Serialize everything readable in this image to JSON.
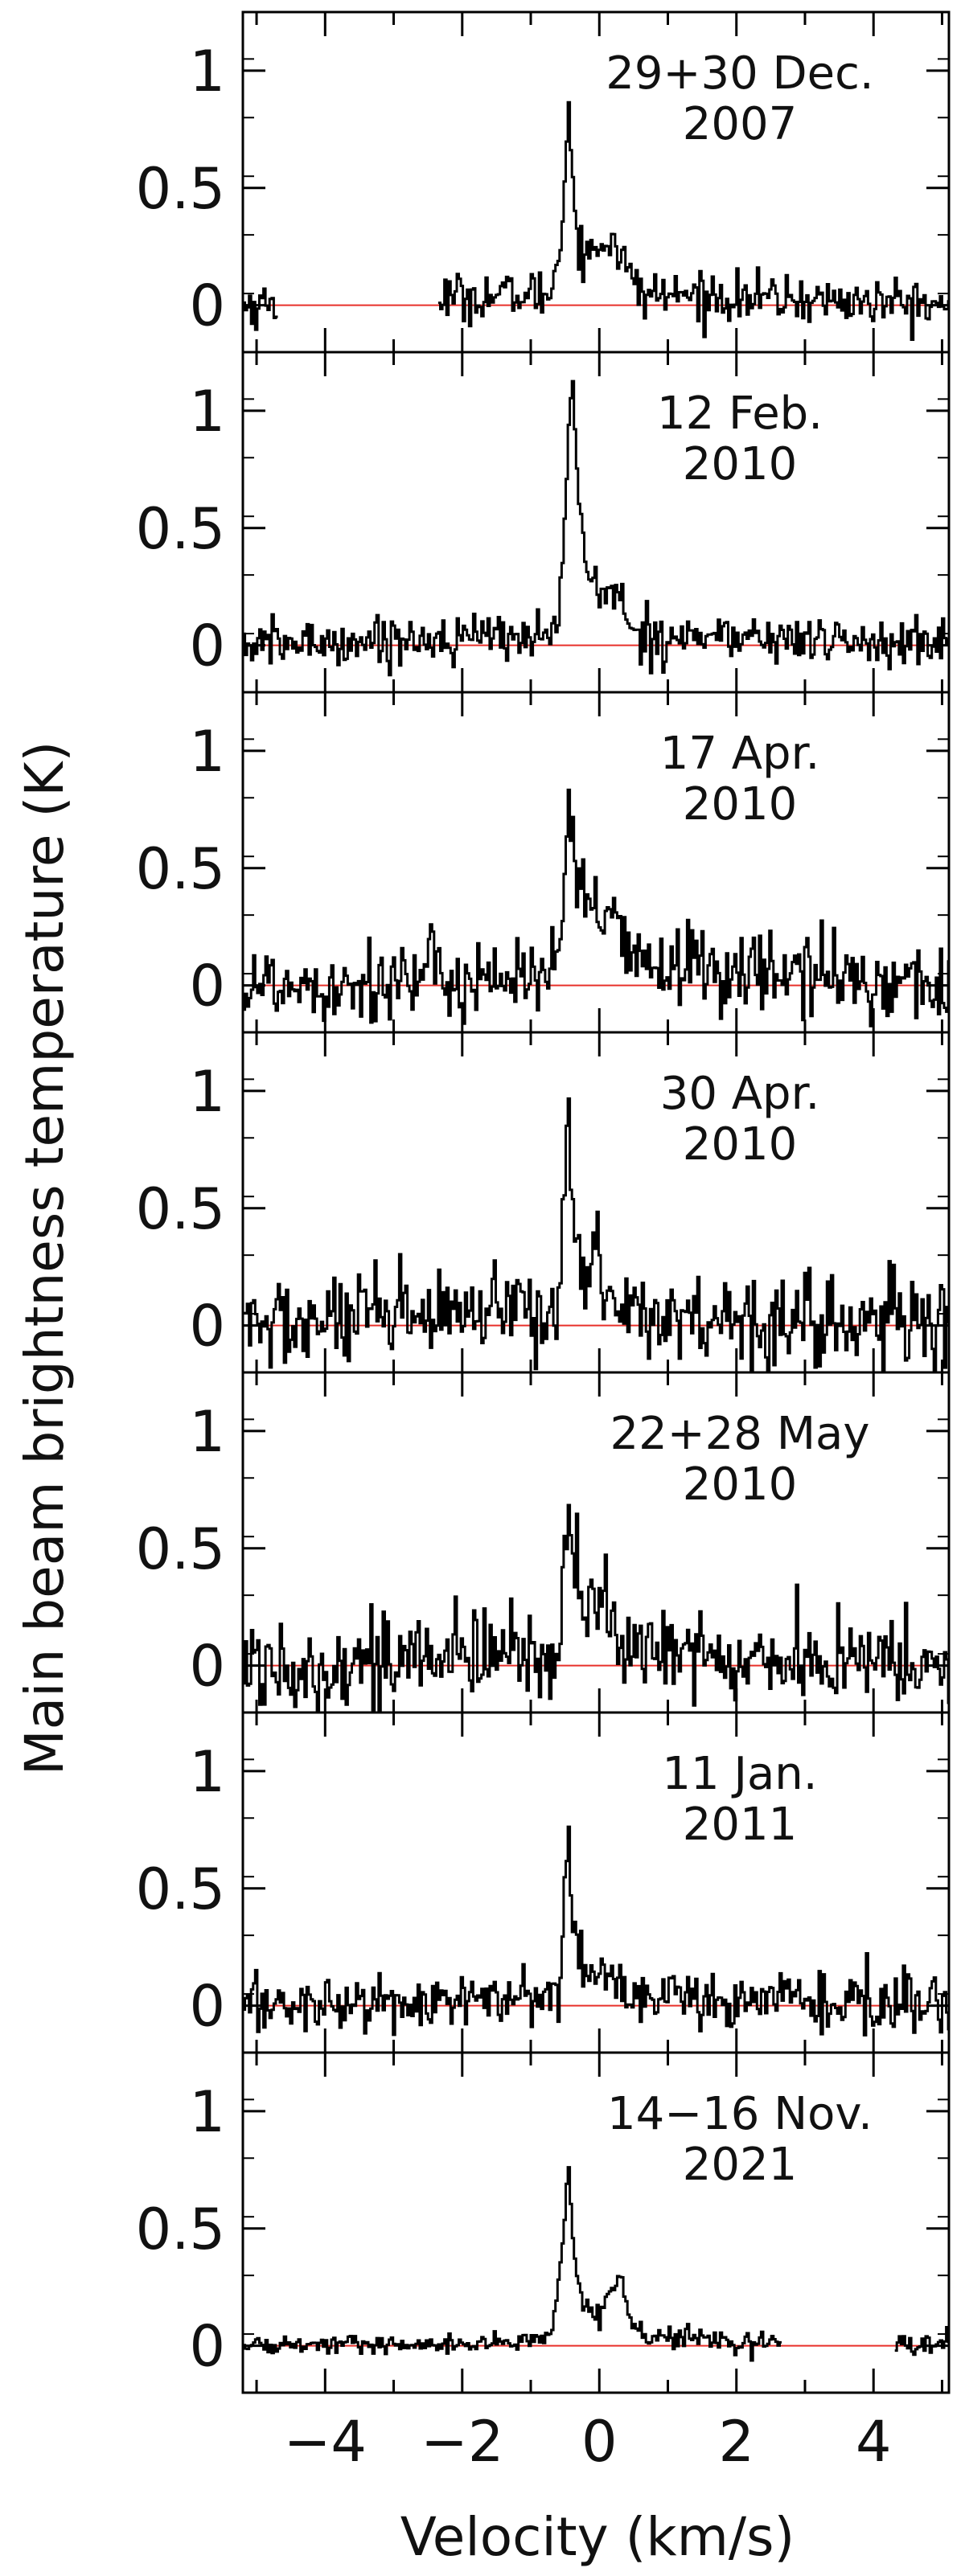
{
  "figure": {
    "ylabel": "Main beam brightness temperature (K)",
    "xlabel": "Velocity (km/s)"
  },
  "colors": {
    "spectrum": "#000000",
    "baseline": "#e8302a",
    "frame": "#000000"
  },
  "chart_data": {
    "type": "line",
    "xlabel": "Velocity (km/s)",
    "ylabel": "Main beam brightness temperature (K)",
    "xlim": [
      -5.2,
      5.1
    ],
    "ylim": [
      -0.2,
      1.25
    ],
    "x_ticks": [
      -4,
      -2,
      0,
      2,
      4
    ],
    "y_ticks": [
      0,
      0.5,
      1
    ],
    "y_tick_labels": [
      "0",
      "0.5",
      "1"
    ],
    "x_tick_labels": [
      "−4",
      "−2",
      "0",
      "2",
      "4"
    ],
    "grid": false,
    "baseline": 0,
    "panels": [
      {
        "label_line1": "29+30 Dec.",
        "label_line2": "2007",
        "peak_velocity": -0.45,
        "peak_temperature": 0.88,
        "secondary_feature": "broad wing 0.2–0.3 K from -0.3 to 0.5 km/s",
        "noise_rms": 0.05,
        "gaps": [
          [
            -4.7,
            -2.35
          ]
        ],
        "profile_points": [
          [
            -5.2,
            0.0
          ],
          [
            -0.7,
            0.05
          ],
          [
            -0.55,
            0.3
          ],
          [
            -0.45,
            0.88
          ],
          [
            -0.35,
            0.35
          ],
          [
            -0.2,
            0.2
          ],
          [
            0.0,
            0.25
          ],
          [
            0.2,
            0.3
          ],
          [
            0.4,
            0.15
          ],
          [
            0.6,
            0.05
          ],
          [
            5.1,
            0.0
          ]
        ]
      },
      {
        "label_line1": "12 Feb.",
        "label_line2": "2010",
        "peak_velocity": -0.4,
        "peak_temperature": 1.22,
        "secondary_feature": "shoulder ~0.25 K from -0.3 to 0.3 km/s",
        "noise_rms": 0.05,
        "gaps": [],
        "profile_points": [
          [
            -5.2,
            0.0
          ],
          [
            -0.6,
            0.05
          ],
          [
            -0.5,
            0.6
          ],
          [
            -0.4,
            1.22
          ],
          [
            -0.3,
            0.6
          ],
          [
            -0.2,
            0.3
          ],
          [
            0.0,
            0.25
          ],
          [
            0.3,
            0.2
          ],
          [
            0.5,
            0.05
          ],
          [
            5.1,
            0.0
          ]
        ]
      },
      {
        "label_line1": "17 Apr.",
        "label_line2": "2010",
        "peak_velocity": -0.45,
        "peak_temperature": 0.8,
        "secondary_feature": "wing ~0.3 K from -0.3 to 0.3 km/s",
        "noise_rms": 0.09,
        "gaps": [],
        "profile_points": [
          [
            -5.2,
            0.0
          ],
          [
            -0.6,
            0.05
          ],
          [
            -0.5,
            0.4
          ],
          [
            -0.45,
            0.8
          ],
          [
            -0.35,
            0.45
          ],
          [
            -0.1,
            0.3
          ],
          [
            0.2,
            0.3
          ],
          [
            0.4,
            0.1
          ],
          [
            5.1,
            0.0
          ]
        ]
      },
      {
        "label_line1": "30 Apr.",
        "label_line2": "2010",
        "peak_velocity": -0.45,
        "peak_temperature": 1.0,
        "secondary_feature": "weak wing ~0.25 K near -0.2 to 0.2 km/s",
        "noise_rms": 0.1,
        "gaps": [],
        "profile_points": [
          [
            -5.2,
            0.0
          ],
          [
            -0.6,
            0.05
          ],
          [
            -0.52,
            0.5
          ],
          [
            -0.45,
            1.0
          ],
          [
            -0.38,
            0.45
          ],
          [
            -0.2,
            0.25
          ],
          [
            0.2,
            0.2
          ],
          [
            0.35,
            0.05
          ],
          [
            5.1,
            0.0
          ]
        ]
      },
      {
        "label_line1": "22+28 May",
        "label_line2": "2010",
        "peak_velocity": -0.45,
        "peak_temperature": 0.82,
        "secondary_feature": "wing ~0.25 K from -0.3 to 0.4 km/s",
        "noise_rms": 0.1,
        "gaps": [],
        "profile_points": [
          [
            -5.2,
            0.0
          ],
          [
            -0.6,
            0.05
          ],
          [
            -0.52,
            0.45
          ],
          [
            -0.45,
            0.82
          ],
          [
            -0.38,
            0.4
          ],
          [
            -0.2,
            0.25
          ],
          [
            0.2,
            0.25
          ],
          [
            0.4,
            0.05
          ],
          [
            5.1,
            0.0
          ]
        ]
      },
      {
        "label_line1": "11 Jan.",
        "label_line2": "2011",
        "peak_velocity": -0.45,
        "peak_temperature": 0.8,
        "secondary_feature": "weak wing ~0.15 K",
        "noise_rms": 0.06,
        "gaps": [],
        "profile_points": [
          [
            -5.2,
            0.0
          ],
          [
            -0.6,
            0.03
          ],
          [
            -0.52,
            0.4
          ],
          [
            -0.45,
            0.8
          ],
          [
            -0.38,
            0.3
          ],
          [
            -0.2,
            0.15
          ],
          [
            0.2,
            0.12
          ],
          [
            0.4,
            0.03
          ],
          [
            5.1,
            0.0
          ]
        ]
      },
      {
        "label_line1": "14−16 Nov.",
        "label_line2": "2021",
        "peak_velocity": -0.45,
        "peak_temperature": 0.75,
        "secondary_feature": "second peak ~0.3 K at 0.3 km/s",
        "noise_rms": 0.02,
        "gaps": [
          [
            2.65,
            4.3
          ]
        ],
        "profile_points": [
          [
            -5.2,
            0.0
          ],
          [
            -0.7,
            0.02
          ],
          [
            -0.55,
            0.4
          ],
          [
            -0.45,
            0.75
          ],
          [
            -0.35,
            0.35
          ],
          [
            -0.2,
            0.15
          ],
          [
            0.0,
            0.12
          ],
          [
            0.15,
            0.2
          ],
          [
            0.3,
            0.3
          ],
          [
            0.45,
            0.1
          ],
          [
            0.6,
            0.05
          ],
          [
            1.0,
            0.03
          ],
          [
            5.1,
            0.0
          ]
        ]
      }
    ]
  }
}
